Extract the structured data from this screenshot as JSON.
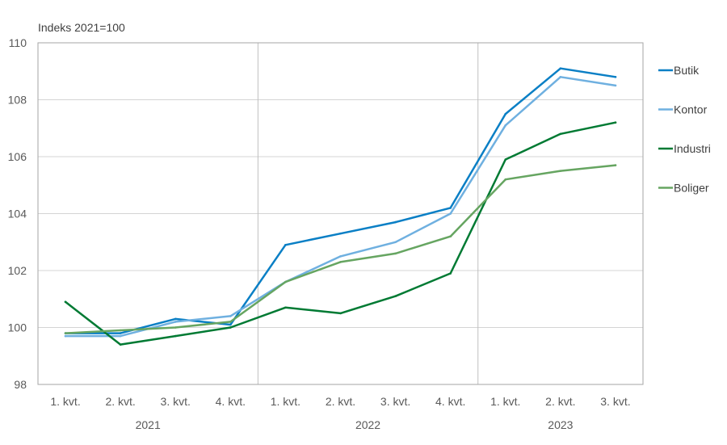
{
  "chart_data": {
    "type": "line",
    "unit_label": "Indeks 2021=100",
    "categories": [
      "1. kvt.",
      "2. kvt.",
      "3. kvt.",
      "4. kvt.",
      "1. kvt.",
      "2. kvt.",
      "3. kvt.",
      "4. kvt.",
      "1. kvt.",
      "2. kvt.",
      "3. kvt."
    ],
    "year_groups": [
      {
        "label": "2021",
        "start": 0,
        "end": 3
      },
      {
        "label": "2022",
        "start": 4,
        "end": 7
      },
      {
        "label": "2023",
        "start": 8,
        "end": 10
      }
    ],
    "ylim": [
      98,
      110
    ],
    "yticks": [
      98,
      100,
      102,
      104,
      106,
      108,
      110
    ],
    "grid": true,
    "legend_position": "right",
    "series": [
      {
        "name": "Butik",
        "color": "#0a7fc5",
        "values": [
          99.8,
          99.8,
          100.3,
          100.1,
          102.9,
          103.3,
          103.7,
          104.2,
          107.5,
          109.1,
          108.8
        ]
      },
      {
        "name": "Kontor",
        "color": "#6fb0e0",
        "values": [
          99.7,
          99.7,
          100.2,
          100.4,
          101.6,
          102.5,
          103.0,
          104.0,
          107.1,
          108.8,
          108.5
        ]
      },
      {
        "name": "Industri",
        "color": "#007a33",
        "values": [
          100.9,
          99.4,
          99.7,
          100.0,
          100.7,
          100.5,
          101.1,
          101.9,
          105.9,
          106.8,
          107.2
        ]
      },
      {
        "name": "Boliger",
        "color": "#66a561",
        "values": [
          99.8,
          99.9,
          100.0,
          100.2,
          101.6,
          102.3,
          102.6,
          103.2,
          105.2,
          105.5,
          105.7
        ]
      }
    ]
  }
}
